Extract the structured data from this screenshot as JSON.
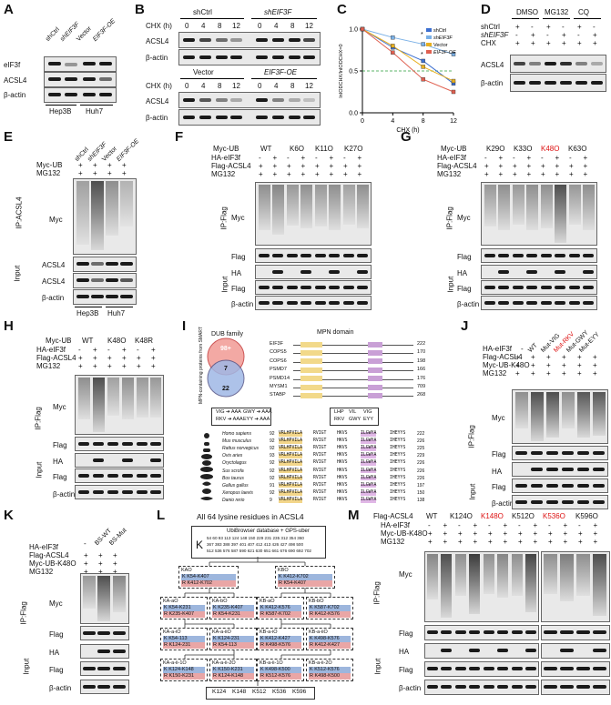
{
  "panels": {
    "A": {
      "letter": "A",
      "lanes": [
        "shCtrl",
        "shEIF3F",
        "Vector",
        "EIF3F-OE"
      ],
      "rows": [
        "eIF3f",
        "ACSL4",
        "β-actin"
      ],
      "groups": [
        "Hep3B",
        "Huh7"
      ]
    },
    "B": {
      "letter": "B",
      "top_groups": [
        "shCtrl",
        "shEIF3F"
      ],
      "bottom_groups": [
        "Vector",
        "EIF3F-OE"
      ],
      "chx_label": "CHX (h)",
      "times": [
        "0",
        "4",
        "8",
        "12",
        "0",
        "4",
        "8",
        "12"
      ],
      "rows": [
        "ACSL4",
        "β-actin"
      ]
    },
    "C": {
      "letter": "C",
      "chart_data": {
        "type": "line",
        "xlabel": "CHX (h)",
        "ylabel": "lnIODCHX/lnIODCHX=0",
        "x_ticks": [
          "0",
          "4",
          "8",
          "12"
        ],
        "y_ticks": [
          "0.0",
          "0.5",
          "1.0"
        ],
        "ylim": [
          0,
          1
        ],
        "legend_position": "top-right",
        "significance_marks": [
          "*",
          "*"
        ],
        "series": [
          {
            "name": "shCtrl",
            "color": "#3c6fd0",
            "x": [
              0,
              4,
              8,
              12
            ],
            "values": [
              1.0,
              0.78,
              0.62,
              0.35
            ]
          },
          {
            "name": "shEIF3F",
            "color": "#7ab0e6",
            "x": [
              0,
              4,
              8,
              12
            ],
            "values": [
              1.0,
              0.9,
              0.82,
              0.7
            ]
          },
          {
            "name": "Vector",
            "color": "#e8b020",
            "x": [
              0,
              4,
              8,
              12
            ],
            "values": [
              1.0,
              0.8,
              0.55,
              0.38
            ]
          },
          {
            "name": "EIF3F-OE",
            "color": "#e06050",
            "x": [
              0,
              4,
              8,
              12
            ],
            "values": [
              1.0,
              0.72,
              0.4,
              0.25
            ]
          }
        ]
      }
    },
    "D": {
      "letter": "D",
      "groups": [
        "DMSO",
        "MG132",
        "CQ"
      ],
      "cond_rows": [
        {
          "label": "shCtrl",
          "vals": [
            "+",
            "-",
            "+",
            "-",
            "+",
            "-"
          ]
        },
        {
          "label": "shEIF3F",
          "vals": [
            "-",
            "+",
            "-",
            "+",
            "-",
            "+"
          ]
        },
        {
          "label": "CHX",
          "vals": [
            "+",
            "+",
            "+",
            "+",
            "+",
            "+"
          ]
        }
      ],
      "rows": [
        "ACSL4",
        "β-actin"
      ]
    },
    "E": {
      "letter": "E",
      "lanes": [
        "shCtrl",
        "shEIF3F",
        "Vector",
        "EIF3F-OE"
      ],
      "cond_rows": [
        {
          "label": "Myc-UB",
          "vals": [
            "+",
            "+",
            "+",
            "+"
          ]
        },
        {
          "label": "MG132",
          "vals": [
            "+",
            "+",
            "+",
            "+"
          ]
        }
      ],
      "ip_label": "IP:ACSL4",
      "input_label": "Input",
      "rows": [
        "Myc",
        "ACSL4",
        "ACSL4",
        "β-actin"
      ],
      "groups": [
        "Hep3B",
        "Huh7"
      ]
    },
    "F": {
      "letter": "F",
      "myc_ub_label": "Myc-UB",
      "ub_variants": [
        "WT",
        "K6O",
        "K11O",
        "K27O"
      ],
      "cond_rows": [
        {
          "label": "HA-eIF3f",
          "vals": [
            "-",
            "+",
            "-",
            "+",
            "-",
            "+",
            "-",
            "+"
          ]
        },
        {
          "label": "Flag-ACSL4",
          "vals": [
            "+",
            "+",
            "+",
            "+",
            "+",
            "+",
            "+",
            "+"
          ]
        },
        {
          "label": "MG132",
          "vals": [
            "+",
            "+",
            "+",
            "+",
            "+",
            "+",
            "+",
            "+"
          ]
        }
      ],
      "ip_label": "IP:Flag",
      "input_label": "Input",
      "rows": [
        "Myc",
        "Flag",
        "HA",
        "Flag",
        "β-actin"
      ]
    },
    "G": {
      "letter": "G",
      "myc_ub_label": "Myc-UB",
      "ub_variants": [
        "K29O",
        "K33O",
        "K48O",
        "K63O"
      ],
      "cond_rows": [
        {
          "label": "HA-eIF3f",
          "vals": [
            "-",
            "+",
            "-",
            "+",
            "-",
            "+",
            "-",
            "+"
          ]
        },
        {
          "label": "Flag-ACSL4",
          "vals": [
            "+",
            "+",
            "+",
            "+",
            "+",
            "+",
            "+",
            "+"
          ]
        },
        {
          "label": "MG132",
          "vals": [
            "+",
            "+",
            "+",
            "+",
            "+",
            "+",
            "+",
            "+"
          ]
        }
      ],
      "ip_label": "IP:Flag",
      "input_label": "Input",
      "rows": [
        "Myc",
        "Flag",
        "HA",
        "Flag",
        "β-actin"
      ]
    },
    "H": {
      "letter": "H",
      "myc_ub_label": "Myc-UB",
      "ub_variants": [
        "WT",
        "K48O",
        "K48R"
      ],
      "cond_rows": [
        {
          "label": "HA-eIF3f",
          "vals": [
            "-",
            "+",
            "-",
            "+",
            "-",
            "+"
          ]
        },
        {
          "label": "Flag-ACSL4",
          "vals": [
            "+",
            "+",
            "+",
            "+",
            "+",
            "+"
          ]
        },
        {
          "label": "MG132",
          "vals": [
            "+",
            "+",
            "+",
            "+",
            "+",
            "+"
          ]
        }
      ],
      "ip_label": "IP:Flag",
      "input_label": "Input",
      "rows": [
        "Myc",
        "Flag",
        "HA",
        "Flag",
        "β-actin"
      ]
    },
    "I": {
      "letter": "I",
      "venn_title": "DUB family",
      "venn_side": "MPN-containing proteins from SMART",
      "venn_numbers": [
        "98+",
        "7",
        "22"
      ],
      "domain_title": "MPN domain",
      "proteins": [
        "EIF3F",
        "COPS5",
        "COPS6",
        "PSMD7",
        "PSMD14",
        "MYSM1",
        "STABP"
      ],
      "protein_ends": [
        "222",
        "170",
        "198",
        "166",
        "176",
        "709",
        "268"
      ],
      "motif_left": [
        "VIG ➔ AAA",
        "RKV ➔ AAA"
      ],
      "motif_right": [
        "GWY ➔ AAA",
        "EYY ➔ AAA"
      ],
      "motif_box": [
        "LHP",
        "VIL",
        "VIG",
        "RKV",
        "GWY",
        "EYY"
      ],
      "species": [
        "Homo sapiens",
        "Mus musculus",
        "Rattus norvegicus",
        "Ovis aries",
        "Oryctolagus",
        "Sus scrofa",
        "Bos taurus",
        "Gallus gallus",
        "Xenopus laevis",
        "Danio rerio"
      ],
      "species_start": [
        "92",
        "92",
        "92",
        "93",
        "92",
        "92",
        "92",
        "91",
        "92",
        "9"
      ],
      "species_end": [
        "222",
        "226",
        "225",
        "229",
        "226",
        "226",
        "226",
        "197",
        "150",
        "138"
      ],
      "seq_segments": [
        "VRLHPVILA",
        "RVIGT",
        "HKVS",
        "ILGWYA",
        "IHEYYS"
      ]
    },
    "J": {
      "letter": "J",
      "lanes": [
        "-",
        "WT",
        "Mut-VIG",
        "Mut-RKV",
        "Mut-GWY",
        "Mut-EYY"
      ],
      "cond_rows": [
        {
          "label": "HA-eIF3f",
          "vals": []
        },
        {
          "label": "Flag-ACSL4",
          "vals": [
            "+",
            "+",
            "+",
            "+",
            "+",
            "+"
          ]
        },
        {
          "label": "Myc-UB-K48O",
          "vals": [
            "+",
            "+",
            "+",
            "+",
            "+",
            "+"
          ]
        },
        {
          "label": "MG132",
          "vals": [
            "+",
            "+",
            "+",
            "+",
            "+",
            "+"
          ]
        }
      ],
      "ip_label": "IP:Flag",
      "input_label": "Input",
      "rows": [
        "Myc",
        "Flag",
        "HA",
        "Flag",
        "β-actin"
      ]
    },
    "K": {
      "letter": "K",
      "lanes": [
        "-",
        "BS-WT",
        "BS-Mut"
      ],
      "cond_rows": [
        {
          "label": "HA-eIF3f",
          "vals": []
        },
        {
          "label": "Flag-ACSL4",
          "vals": [
            "+",
            "+",
            "+"
          ]
        },
        {
          "label": "Myc-UB-K48O",
          "vals": [
            "+",
            "+",
            "+"
          ]
        },
        {
          "label": "MG132",
          "vals": [
            "+",
            "+",
            "+"
          ]
        }
      ],
      "ip_label": "IP:Flag",
      "input_label": "Input",
      "rows": [
        "Myc",
        "Flag",
        "HA",
        "Flag",
        "β-actin"
      ]
    },
    "L": {
      "letter": "L",
      "title": "All 64 lysine residues in ACSL4",
      "database": "UbiBrowser database + GPS-uber",
      "k_letter": "K",
      "residues": [
        "54 60 93 113 124 148 150 229 231 235 312 354 360",
        "367 383 388 397 401 407 412 413 426 427 498 500",
        "512 536 576 587 590 621 630 651 661 676 690 692 702"
      ],
      "level1": [
        {
          "title": "KAO",
          "k": "K  K54-K407",
          "r": "R  K412-K702"
        },
        {
          "title": "KBO",
          "k": "K  K412-K702",
          "r": "R  K54-K407"
        }
      ],
      "level2": [
        {
          "title": "KA-aO",
          "k": "K  K54-K231",
          "r": "R  K235-K407"
        },
        {
          "title": "KA-bO",
          "k": "K  K235-K407",
          "r": "R  K54-K231"
        },
        {
          "title": "KB-aO",
          "k": "K  K412-K576",
          "r": "R  K587-K702"
        },
        {
          "title": "KB-bO",
          "k": "K  K587-K702",
          "r": "R  K412-K576"
        }
      ],
      "level3": [
        {
          "title": "KA-a-iO",
          "k": "K  K54-113",
          "r": "R  K124-231"
        },
        {
          "title": "KA-a-iiO",
          "k": "K  K124-231",
          "r": "R  K54-113"
        },
        {
          "title": "KB-a-iO",
          "k": "K  K412-K427",
          "r": "R  K498-K576"
        },
        {
          "title": "KB-a-iiO",
          "k": "K  K498-K576",
          "r": "R  K412-K427"
        }
      ],
      "level4": [
        {
          "title": "KA-a-ii-1O",
          "k": "K  K124-K148",
          "r": "R  K150-K231"
        },
        {
          "title": "KA-a-ii-2O",
          "k": "K  K150-K231",
          "r": "R  K124-K148"
        },
        {
          "title": "KB-a-ii-1O",
          "k": "K  K498-K500",
          "r": "R  K512-K576"
        },
        {
          "title": "KB-a-ii-2O",
          "k": "K  K512-K576",
          "r": "R  K498-K500"
        }
      ],
      "final": [
        "K124",
        "K148",
        "K512",
        "K536",
        "K596"
      ]
    },
    "M": {
      "letter": "M",
      "variants": [
        "WT",
        "K124O",
        "K148O",
        "K512O",
        "K536O",
        "K596O"
      ],
      "red_variants": [
        "K148O",
        "K536O"
      ],
      "cond_rows": [
        {
          "label": "Flag-ACSL4"
        },
        {
          "label": "HA-eIF3f",
          "vals": [
            "-",
            "+",
            "-",
            "+",
            "-",
            "+",
            "-",
            "+",
            "-",
            "+",
            "-",
            "+"
          ]
        },
        {
          "label": "Myc-UB-K48O",
          "vals": [
            "+",
            "+",
            "+",
            "+",
            "+",
            "+",
            "+",
            "+",
            "+",
            "+",
            "+",
            "+"
          ]
        },
        {
          "label": "MG132",
          "vals": [
            "+",
            "+",
            "+",
            "+",
            "+",
            "+",
            "+",
            "+",
            "+",
            "+",
            "+",
            "+"
          ]
        }
      ],
      "ip_label": "IP:Flag",
      "input_label": "Input",
      "rows": [
        "Myc",
        "Flag",
        "HA",
        "Flag",
        "β-actin"
      ]
    }
  }
}
